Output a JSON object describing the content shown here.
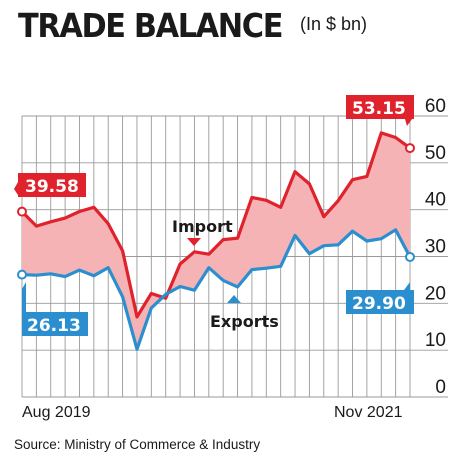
{
  "header": {
    "title": "TRADE BALANCE",
    "unit": "(In $ bn)"
  },
  "footer": {
    "source": "Source: Ministry of Commerce & Industry"
  },
  "colors": {
    "import": "#e0222c",
    "exports": "#2b8fcf",
    "gap_fill": "#f6b3b6",
    "grid": "#9a9a9a"
  },
  "chart_data": {
    "type": "line",
    "x_start_label": "Aug 2019",
    "x_end_label": "Nov 2021",
    "ylim": [
      0,
      60
    ],
    "yticks": [
      0,
      10,
      20,
      30,
      40,
      50,
      60
    ],
    "grid": true,
    "fill_between": true,
    "x": [
      "Aug 2019",
      "Sep 2019",
      "Oct 2019",
      "Nov 2019",
      "Dec 2019",
      "Jan 2020",
      "Feb 2020",
      "Mar 2020",
      "Apr 2020",
      "May 2020",
      "Jun 2020",
      "Jul 2020",
      "Aug 2020",
      "Sep 2020",
      "Oct 2020",
      "Nov 2020",
      "Dec 2020",
      "Jan 2021",
      "Feb 2021",
      "Mar 2021",
      "Apr 2021",
      "May 2021",
      "Jun 2021",
      "Jul 2021",
      "Aug 2021",
      "Sep 2021",
      "Oct 2021",
      "Nov 2021"
    ],
    "series": [
      {
        "name": "Import",
        "values": [
          39.58,
          36.5,
          37.4,
          38.2,
          39.6,
          40.5,
          37.0,
          31.2,
          17.1,
          22.1,
          21.1,
          28.4,
          31.0,
          30.5,
          33.6,
          33.9,
          42.6,
          42.0,
          40.5,
          48.1,
          45.5,
          38.5,
          41.9,
          46.4,
          47.1,
          56.4,
          55.4,
          53.15
        ]
      },
      {
        "name": "Exports",
        "values": [
          26.13,
          26.0,
          26.3,
          25.7,
          27.1,
          25.9,
          27.6,
          21.4,
          10.2,
          19.0,
          21.9,
          23.6,
          22.8,
          27.6,
          24.9,
          23.5,
          27.2,
          27.5,
          27.9,
          34.5,
          30.6,
          32.3,
          32.5,
          35.4,
          33.3,
          33.8,
          35.7,
          29.9
        ]
      }
    ],
    "value_labels": {
      "import_first": "39.58",
      "import_last": "53.15",
      "exports_first": "26.13",
      "exports_last": "29.90"
    }
  }
}
